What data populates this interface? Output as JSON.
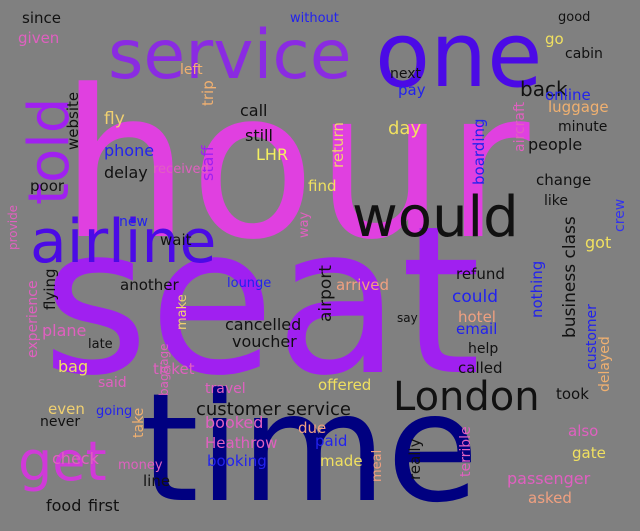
{
  "background_color": "#808080",
  "words": [
    {
      "text": "hour",
      "color": "#e040e0"
    },
    {
      "text": "seat",
      "color": "#a020f0"
    },
    {
      "text": "time",
      "color": "#000080"
    },
    {
      "text": "one",
      "color": "#4b0ae6"
    },
    {
      "text": "service",
      "color": "#8a2be2"
    },
    {
      "text": "airline",
      "color": "#4b0ae6"
    },
    {
      "text": "would",
      "color": "#111111"
    },
    {
      "text": "told",
      "color": "#a020f0"
    },
    {
      "text": "get",
      "color": "#d03ad8"
    },
    {
      "text": "London",
      "color": "#111111"
    },
    {
      "text": "customer service",
      "color": "#111111"
    },
    {
      "text": "cancelled",
      "color": "#111111"
    },
    {
      "text": "airport",
      "color": "#111111"
    },
    {
      "text": "business class",
      "color": "#111111"
    },
    {
      "text": "back",
      "color": "#111111"
    },
    {
      "text": "could",
      "color": "#2222ee"
    },
    {
      "text": "day",
      "color": "#f0e060"
    },
    {
      "text": "call",
      "color": "#111111"
    },
    {
      "text": "still",
      "color": "#111111"
    },
    {
      "text": "staff",
      "color": "#a020f0"
    },
    {
      "text": "trip",
      "color": "#f0b070"
    },
    {
      "text": "LHR",
      "color": "#f4f060"
    },
    {
      "text": "fly",
      "color": "#f0d070"
    },
    {
      "text": "left",
      "color": "#f0b070"
    },
    {
      "text": "website",
      "color": "#111111"
    },
    {
      "text": "phone",
      "color": "#2222ee"
    },
    {
      "text": "delay",
      "color": "#111111"
    },
    {
      "text": "next",
      "color": "#111111"
    },
    {
      "text": "pay",
      "color": "#2222ee"
    },
    {
      "text": "return",
      "color": "#f0d070"
    },
    {
      "text": "online",
      "color": "#2222ee"
    },
    {
      "text": "luggage",
      "color": "#f0b070"
    },
    {
      "text": "minute",
      "color": "#111111"
    },
    {
      "text": "boarding",
      "color": "#2222ee"
    },
    {
      "text": "aircraft",
      "color": "#e060c0"
    },
    {
      "text": "people",
      "color": "#111111"
    },
    {
      "text": "change",
      "color": "#111111"
    },
    {
      "text": "like",
      "color": "#111111"
    },
    {
      "text": "got",
      "color": "#f0e060"
    },
    {
      "text": "crew",
      "color": "#3333ee"
    },
    {
      "text": "cabin",
      "color": "#111111"
    },
    {
      "text": "go",
      "color": "#f0e060"
    },
    {
      "text": "good",
      "color": "#111111"
    },
    {
      "text": "since",
      "color": "#111111"
    },
    {
      "text": "given",
      "color": "#e060c0"
    },
    {
      "text": "without",
      "color": "#2222ee"
    },
    {
      "text": "poor",
      "color": "#111111"
    },
    {
      "text": "received",
      "color": "#e060c0"
    },
    {
      "text": "find",
      "color": "#f0e060"
    },
    {
      "text": "way",
      "color": "#e060c0"
    },
    {
      "text": "new",
      "color": "#2222ee"
    },
    {
      "text": "wait",
      "color": "#111111"
    },
    {
      "text": "another",
      "color": "#111111"
    },
    {
      "text": "lounge",
      "color": "#2222ee"
    },
    {
      "text": "arrived",
      "color": "#f0a080"
    },
    {
      "text": "refund",
      "color": "#111111"
    },
    {
      "text": "hotel",
      "color": "#f0a080"
    },
    {
      "text": "email",
      "color": "#2222ee"
    },
    {
      "text": "help",
      "color": "#111111"
    },
    {
      "text": "called",
      "color": "#111111"
    },
    {
      "text": "nothing",
      "color": "#2222ee"
    },
    {
      "text": "customer",
      "color": "#2222ee"
    },
    {
      "text": "flying",
      "color": "#111111"
    },
    {
      "text": "experience",
      "color": "#e060c0"
    },
    {
      "text": "provide",
      "color": "#e060c0"
    },
    {
      "text": "plane",
      "color": "#e060c0"
    },
    {
      "text": "make",
      "color": "#f0d070"
    },
    {
      "text": "say",
      "color": "#111111"
    },
    {
      "text": "voucher",
      "color": "#111111"
    },
    {
      "text": "late",
      "color": "#111111"
    },
    {
      "text": "baggage",
      "color": "#e060c0"
    },
    {
      "text": "ticket",
      "color": "#e060c0"
    },
    {
      "text": "bag",
      "color": "#f0e060"
    },
    {
      "text": "said",
      "color": "#e060c0"
    },
    {
      "text": "travel",
      "color": "#e060c0"
    },
    {
      "text": "offered",
      "color": "#f0e060"
    },
    {
      "text": "took",
      "color": "#111111"
    },
    {
      "text": "delayed",
      "color": "#f0b070"
    },
    {
      "text": "even",
      "color": "#f0d070"
    },
    {
      "text": "going",
      "color": "#2222ee"
    },
    {
      "text": "never",
      "color": "#111111"
    },
    {
      "text": "take",
      "color": "#f0b070"
    },
    {
      "text": "booked",
      "color": "#e060c0"
    },
    {
      "text": "due",
      "color": "#f0a080"
    },
    {
      "text": "paid",
      "color": "#2222ee"
    },
    {
      "text": "also",
      "color": "#e060c0"
    },
    {
      "text": "gate",
      "color": "#f0e060"
    },
    {
      "text": "check",
      "color": "#e060c0"
    },
    {
      "text": "Heathrow",
      "color": "#e060c0"
    },
    {
      "text": "booking",
      "color": "#2222ee"
    },
    {
      "text": "money",
      "color": "#e060c0"
    },
    {
      "text": "line",
      "color": "#111111"
    },
    {
      "text": "meal",
      "color": "#f0a080"
    },
    {
      "text": "made",
      "color": "#f0e060"
    },
    {
      "text": "really",
      "color": "#111111"
    },
    {
      "text": "terrible",
      "color": "#e060c0"
    },
    {
      "text": "passenger",
      "color": "#e060c0"
    },
    {
      "text": "asked",
      "color": "#f0a080"
    },
    {
      "text": "food",
      "color": "#111111"
    },
    {
      "text": "first",
      "color": "#111111"
    }
  ]
}
